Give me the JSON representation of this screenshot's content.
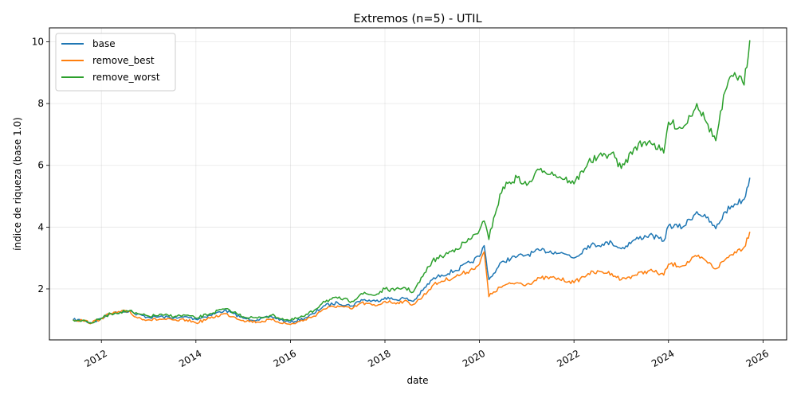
{
  "chart_data": {
    "type": "line",
    "title": "Extremos (n=5) - UTIL",
    "xlabel": "date",
    "ylabel": "índice de riqueza (base 1.0)",
    "xlim": [
      2010.9,
      2026.5
    ],
    "ylim": [
      0.35,
      10.45
    ],
    "x_ticks": [
      2012,
      2014,
      2016,
      2018,
      2020,
      2022,
      2024,
      2026
    ],
    "x_tick_labels": [
      "2012",
      "2014",
      "2016",
      "2018",
      "2020",
      "2022",
      "2024",
      "2026"
    ],
    "y_ticks": [
      2,
      4,
      6,
      8,
      10
    ],
    "y_tick_labels": [
      "2",
      "4",
      "6",
      "8",
      "10"
    ],
    "grid": true,
    "legend_position": "top-left",
    "series": [
      {
        "name": "base",
        "color": "#1f77b4",
        "x": [
          2011.4,
          2011.6,
          2011.8,
          2012.0,
          2012.2,
          2012.4,
          2012.6,
          2012.7,
          2013.0,
          2013.3,
          2013.6,
          2013.8,
          2014.0,
          2014.3,
          2014.6,
          2014.8,
          2015.0,
          2015.3,
          2015.6,
          2015.9,
          2016.0,
          2016.3,
          2016.5,
          2016.7,
          2017.0,
          2017.3,
          2017.5,
          2017.8,
          2018.0,
          2018.2,
          2018.4,
          2018.6,
          2018.8,
          2019.0,
          2019.2,
          2019.5,
          2019.8,
          2020.0,
          2020.1,
          2020.2,
          2020.3,
          2020.5,
          2020.8,
          2021.0,
          2021.3,
          2021.6,
          2021.9,
          2022.0,
          2022.3,
          2022.6,
          2022.8,
          2023.0,
          2023.3,
          2023.6,
          2023.9,
          2024.0,
          2024.3,
          2024.6,
          2024.8,
          2025.0,
          2025.2,
          2025.4,
          2025.6,
          2025.72
        ],
        "y": [
          1.0,
          0.98,
          0.9,
          1.05,
          1.2,
          1.25,
          1.3,
          1.2,
          1.08,
          1.1,
          1.05,
          1.1,
          1.02,
          1.15,
          1.3,
          1.2,
          1.05,
          1.0,
          1.1,
          0.95,
          0.92,
          1.05,
          1.2,
          1.45,
          1.55,
          1.45,
          1.65,
          1.6,
          1.72,
          1.65,
          1.7,
          1.6,
          1.95,
          2.3,
          2.45,
          2.6,
          2.85,
          3.05,
          3.4,
          2.3,
          2.5,
          2.9,
          3.05,
          3.1,
          3.25,
          3.2,
          3.1,
          3.0,
          3.4,
          3.45,
          3.5,
          3.3,
          3.6,
          3.75,
          3.55,
          4.05,
          4.0,
          4.5,
          4.3,
          3.95,
          4.5,
          4.75,
          4.9,
          5.6
        ]
      },
      {
        "name": "remove_best",
        "color": "#ff7f0e",
        "x": [
          2011.4,
          2011.6,
          2011.8,
          2012.0,
          2012.2,
          2012.4,
          2012.6,
          2012.7,
          2013.0,
          2013.3,
          2013.6,
          2013.8,
          2014.0,
          2014.3,
          2014.6,
          2014.8,
          2015.0,
          2015.3,
          2015.6,
          2015.9,
          2016.0,
          2016.3,
          2016.5,
          2016.7,
          2017.0,
          2017.3,
          2017.5,
          2017.8,
          2018.0,
          2018.2,
          2018.4,
          2018.6,
          2018.8,
          2019.0,
          2019.2,
          2019.5,
          2019.8,
          2020.0,
          2020.1,
          2020.2,
          2020.3,
          2020.5,
          2020.8,
          2021.0,
          2021.3,
          2021.6,
          2021.9,
          2022.0,
          2022.3,
          2022.6,
          2022.8,
          2023.0,
          2023.3,
          2023.6,
          2023.9,
          2024.0,
          2024.3,
          2024.6,
          2024.8,
          2025.0,
          2025.2,
          2025.4,
          2025.6,
          2025.72
        ],
        "y": [
          1.0,
          0.98,
          0.9,
          1.05,
          1.2,
          1.25,
          1.28,
          1.1,
          1.0,
          1.02,
          0.97,
          1.0,
          0.9,
          1.05,
          1.2,
          1.1,
          0.98,
          0.93,
          1.0,
          0.88,
          0.85,
          1.0,
          1.12,
          1.35,
          1.45,
          1.35,
          1.55,
          1.45,
          1.6,
          1.55,
          1.6,
          1.5,
          1.75,
          2.1,
          2.25,
          2.4,
          2.6,
          2.8,
          3.2,
          1.75,
          1.9,
          2.1,
          2.2,
          2.15,
          2.35,
          2.35,
          2.25,
          2.2,
          2.5,
          2.55,
          2.5,
          2.3,
          2.45,
          2.6,
          2.45,
          2.8,
          2.75,
          3.05,
          2.9,
          2.65,
          2.95,
          3.2,
          3.35,
          3.85
        ]
      },
      {
        "name": "remove_worst",
        "color": "#2ca02c",
        "x": [
          2011.4,
          2011.6,
          2011.8,
          2012.0,
          2012.2,
          2012.4,
          2012.6,
          2012.7,
          2013.0,
          2013.3,
          2013.6,
          2013.8,
          2014.0,
          2014.3,
          2014.6,
          2014.8,
          2015.0,
          2015.3,
          2015.6,
          2015.9,
          2016.0,
          2016.3,
          2016.5,
          2016.7,
          2017.0,
          2017.3,
          2017.5,
          2017.8,
          2018.0,
          2018.2,
          2018.4,
          2018.6,
          2018.8,
          2019.0,
          2019.2,
          2019.5,
          2019.8,
          2020.0,
          2020.1,
          2020.2,
          2020.3,
          2020.5,
          2020.8,
          2021.0,
          2021.3,
          2021.6,
          2021.9,
          2022.0,
          2022.3,
          2022.6,
          2022.8,
          2023.0,
          2023.3,
          2023.6,
          2023.9,
          2024.0,
          2024.3,
          2024.6,
          2024.8,
          2025.0,
          2025.2,
          2025.4,
          2025.6,
          2025.72
        ],
        "y": [
          1.0,
          0.98,
          0.9,
          1.05,
          1.2,
          1.25,
          1.3,
          1.2,
          1.12,
          1.15,
          1.12,
          1.15,
          1.05,
          1.2,
          1.35,
          1.25,
          1.1,
          1.05,
          1.15,
          1.0,
          0.98,
          1.12,
          1.3,
          1.6,
          1.7,
          1.6,
          1.85,
          1.8,
          2.0,
          1.95,
          2.05,
          1.9,
          2.4,
          2.9,
          3.05,
          3.3,
          3.6,
          3.9,
          4.2,
          3.6,
          4.3,
          5.3,
          5.6,
          5.35,
          5.9,
          5.7,
          5.5,
          5.4,
          6.1,
          6.3,
          6.4,
          5.9,
          6.6,
          6.8,
          6.4,
          7.4,
          7.2,
          8.0,
          7.4,
          6.8,
          8.4,
          9.0,
          8.6,
          10.05
        ]
      }
    ]
  }
}
